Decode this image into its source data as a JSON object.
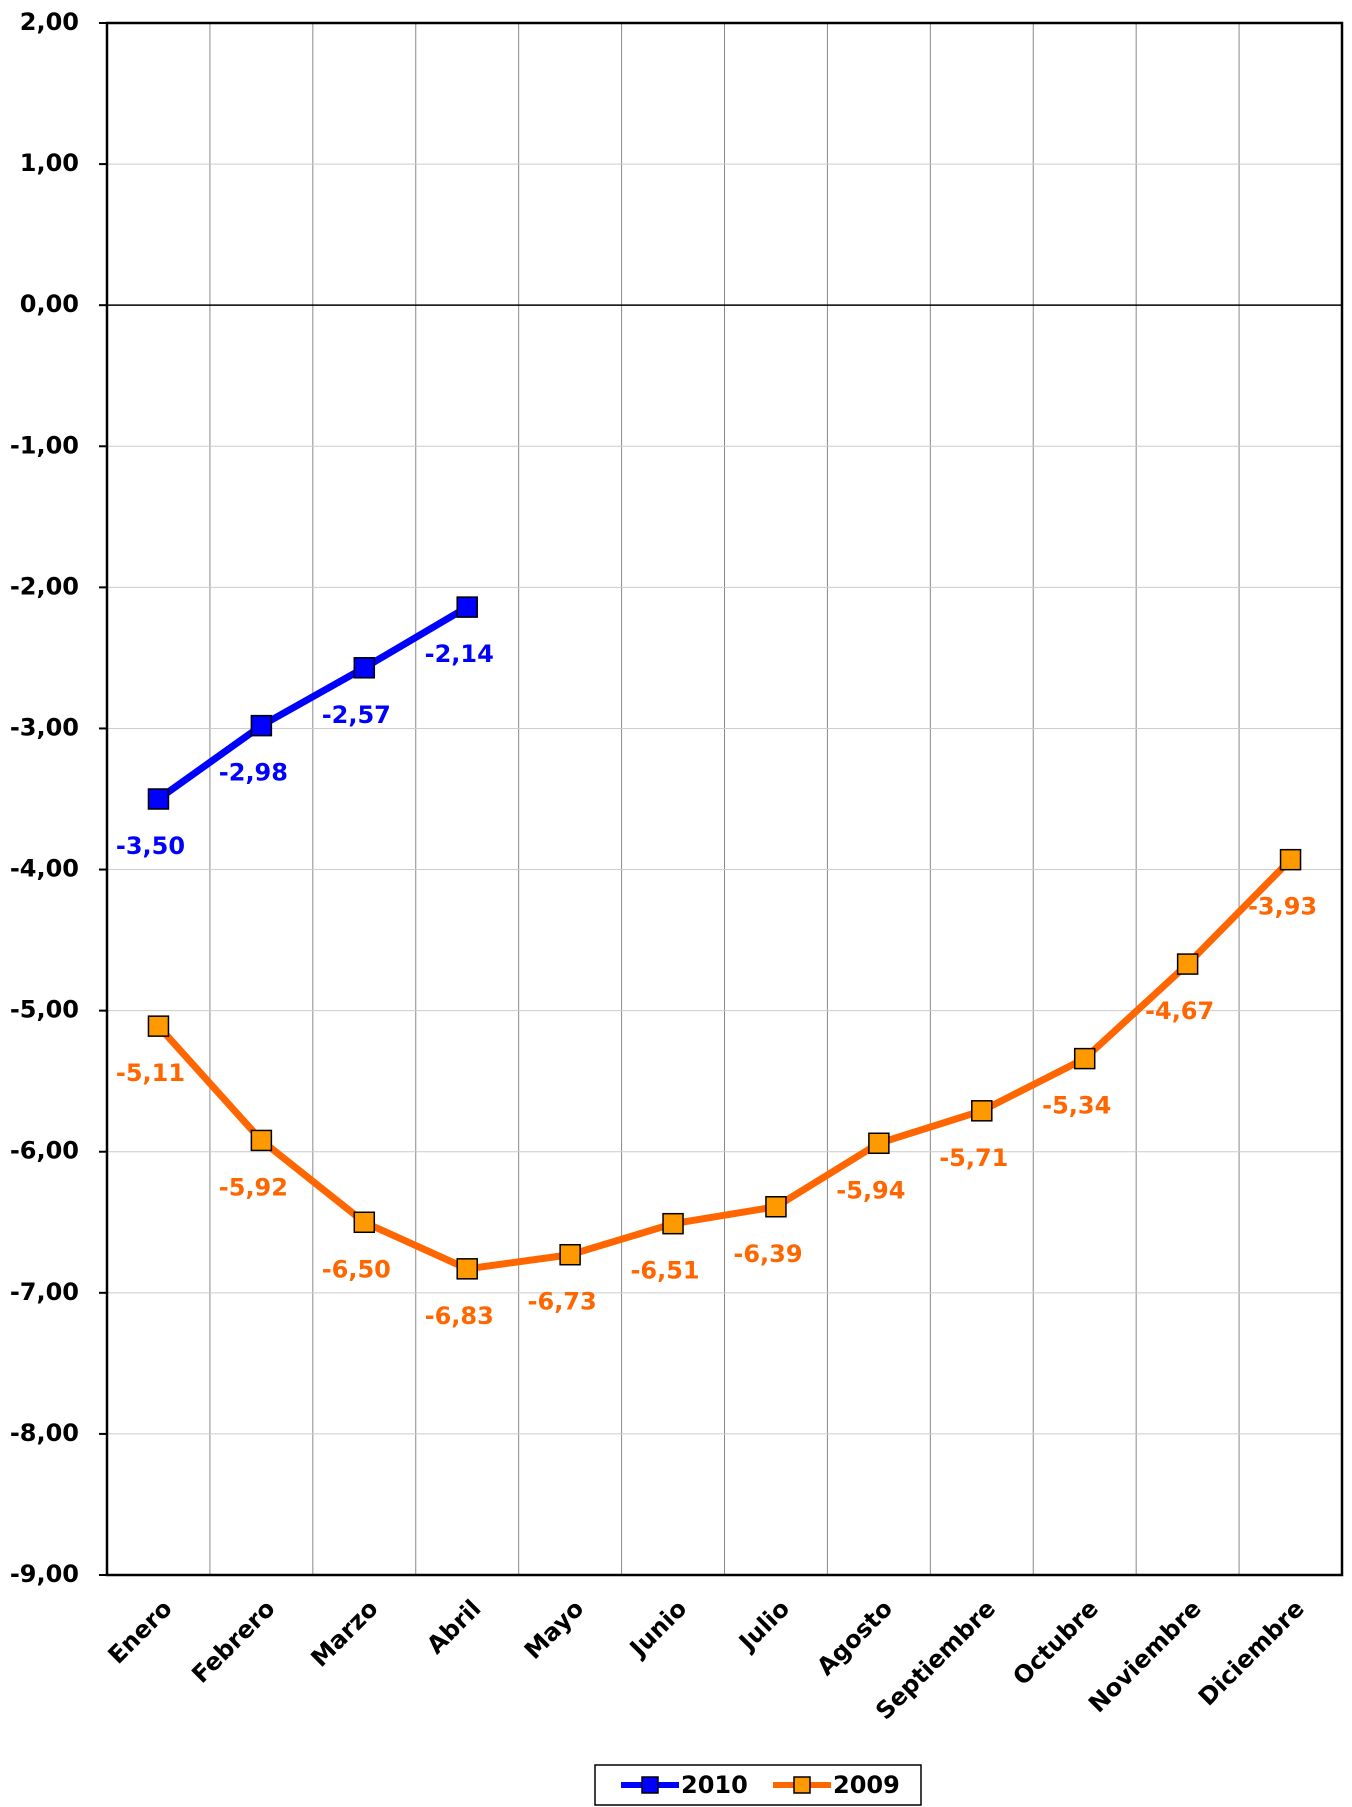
{
  "chart_data": {
    "type": "line",
    "categories": [
      "Enero",
      "Febrero",
      "Marzo",
      "Abril",
      "Mayo",
      "Junio",
      "Julio",
      "Agosto",
      "Septiembre",
      "Octubre",
      "Noviembre",
      "Diciembre"
    ],
    "series": [
      {
        "name": "2010",
        "color": "#0000ff",
        "values": [
          -3.5,
          -2.98,
          -2.57,
          -2.14,
          null,
          null,
          null,
          null,
          null,
          null,
          null,
          null
        ],
        "value_labels": [
          "-3,50",
          "-2,98",
          "-2,57",
          "-2,14",
          null,
          null,
          null,
          null,
          null,
          null,
          null,
          null
        ]
      },
      {
        "name": "2009",
        "color": "#ff6600",
        "marker_color": "#ff9900",
        "values": [
          -5.11,
          -5.92,
          -6.5,
          -6.83,
          -6.73,
          -6.51,
          -6.39,
          -5.94,
          -5.71,
          -5.34,
          -4.67,
          -3.93
        ],
        "value_labels": [
          "-5,11",
          "-5,92",
          "-6,50",
          "-6,83",
          "-6,73",
          "-6,51",
          "-6,39",
          "-5,94",
          "-5,71",
          "-5,34",
          "-4,67",
          "-3,93"
        ]
      }
    ],
    "ylim": [
      -9,
      2
    ],
    "yticks": [
      {
        "value": -9,
        "label": "-9,00"
      },
      {
        "value": -8,
        "label": "-8,00"
      },
      {
        "value": -7,
        "label": "-7,00"
      },
      {
        "value": -6,
        "label": "-6,00"
      },
      {
        "value": -5,
        "label": "-5,00"
      },
      {
        "value": -4,
        "label": "-4,00"
      },
      {
        "value": -3,
        "label": "-3,00"
      },
      {
        "value": -2,
        "label": "-2,00"
      },
      {
        "value": -1,
        "label": "-1,00"
      },
      {
        "value": 0,
        "label": "0,00"
      },
      {
        "value": 1,
        "label": "1,00"
      },
      {
        "value": 2,
        "label": "2,00"
      }
    ],
    "grid": true,
    "legend": "bottom"
  }
}
